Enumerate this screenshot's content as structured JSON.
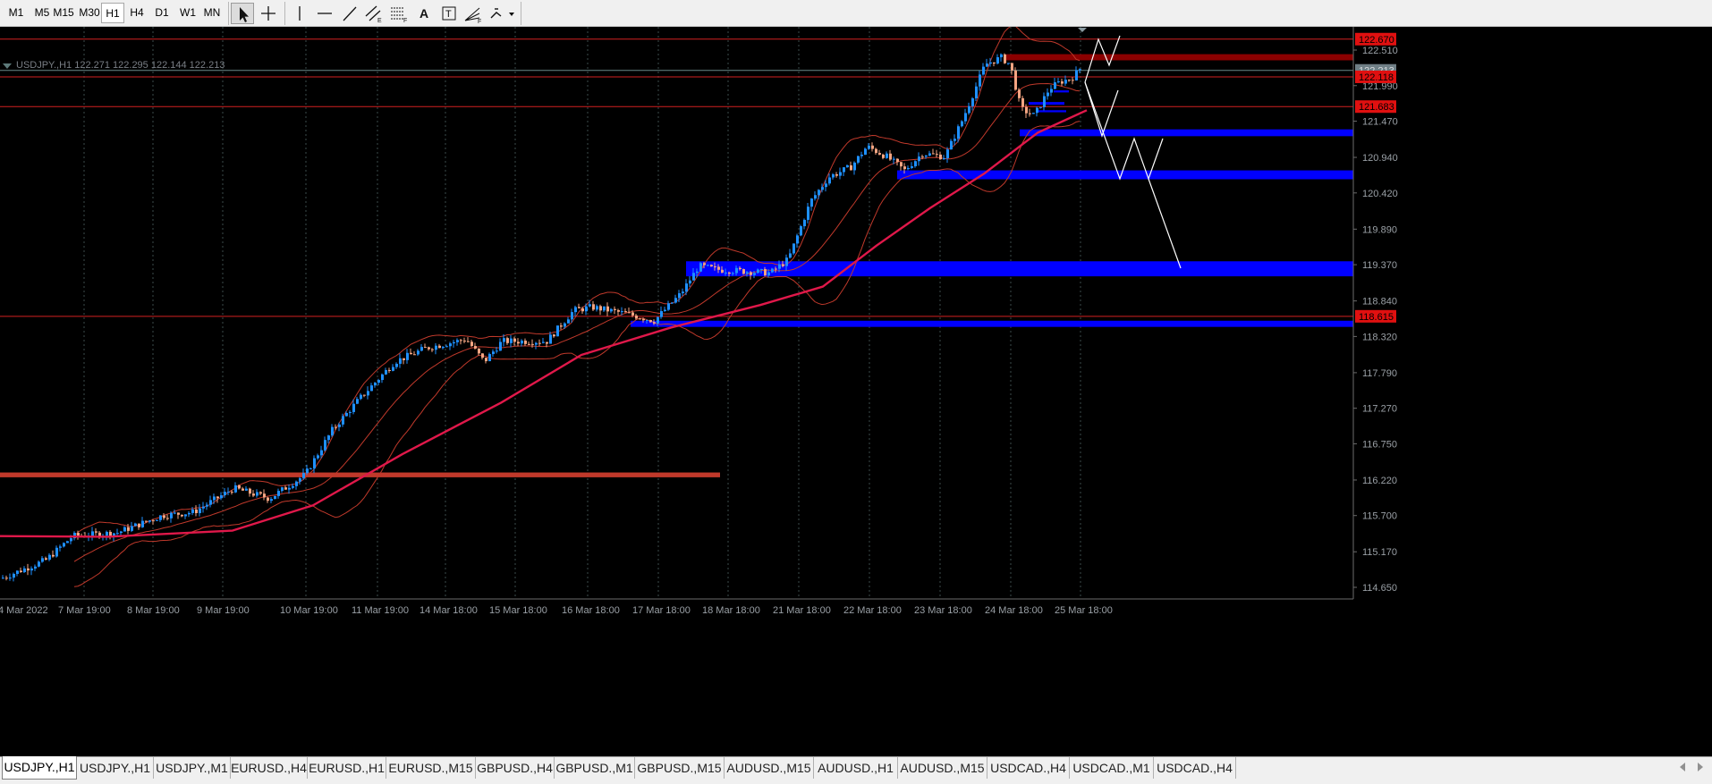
{
  "timeframes": [
    "M1",
    "M5",
    "M15",
    "M30",
    "H1",
    "H4",
    "D1",
    "W1",
    "MN"
  ],
  "active_timeframe": "H1",
  "tools": [
    "cursor-icon",
    "crosshair-icon",
    "vertical-line-icon",
    "horizontal-line-icon",
    "trendline-icon",
    "equidistant-channel-icon",
    "fibonacci-retracement-icon",
    "text-icon",
    "text-label-icon",
    "fibonacci-fan-icon",
    "shapes-icon"
  ],
  "chart": {
    "title": "USDJPY.,H1  122.271 122.295 122.144 122.213",
    "price_axis": [
      "122.510",
      "121.990",
      "121.470",
      "120.940",
      "120.420",
      "119.890",
      "119.370",
      "118.840",
      "118.320",
      "117.790",
      "117.270",
      "116.750",
      "116.220",
      "115.700",
      "115.170",
      "114.650"
    ],
    "time_axis": [
      "4 Mar 2022",
      "7 Mar 19:00",
      "8 Mar 19:00",
      "9 Mar 19:00",
      "10 Mar 19:00",
      "11 Mar 19:00",
      "14 Mar 18:00",
      "15 Mar 18:00",
      "16 Mar 18:00",
      "17 Mar 18:00",
      "18 Mar 18:00",
      "21 Mar 18:00",
      "22 Mar 18:00",
      "23 Mar 18:00",
      "24 Mar 18:00",
      "25 Mar 18:00"
    ],
    "price_labels": [
      {
        "text": "122.670",
        "kind": "red"
      },
      {
        "text": "122.213",
        "kind": "current"
      },
      {
        "text": "122.118",
        "kind": "red"
      },
      {
        "text": "121.683",
        "kind": "red"
      },
      {
        "text": "118.615",
        "kind": "red"
      }
    ]
  },
  "colors": {
    "background": "#000000",
    "bull": "#1e90ff",
    "bear": "#f4a582",
    "bands": "#c0392b",
    "moving_average": "#e0184a",
    "zone": "#0000ff",
    "level": "#d22020",
    "projection": "#ffffff"
  },
  "tabs": [
    "USDJPY.,H1",
    "USDJPY.,H1",
    "USDJPY.,M1",
    "EURUSD.,H4",
    "EURUSD.,H1",
    "EURUSD.,M15",
    "GBPUSD.,H4",
    "GBPUSD.,M1",
    "GBPUSD.,M15",
    "AUDUSD.,M15",
    "AUDUSD.,H1",
    "AUDUSD.,M15",
    "USDCAD.,H4",
    "USDCAD.,M1",
    "USDCAD.,H4"
  ],
  "active_tab": 0
}
